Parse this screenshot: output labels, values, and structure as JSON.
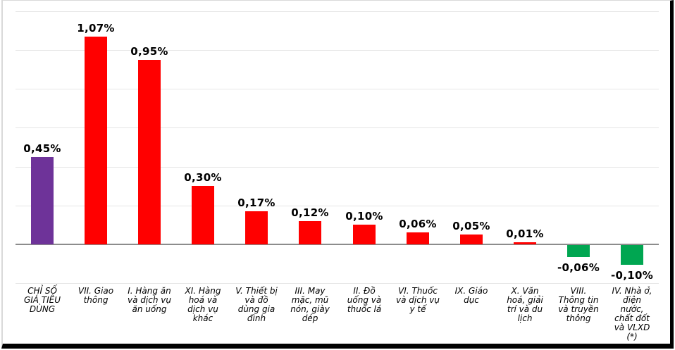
{
  "chart_data": {
    "type": "bar",
    "title": "",
    "unit": "%",
    "legend": false,
    "grid": true,
    "ylim": [
      -0.2,
      1.2
    ],
    "grid_step": 0.2,
    "categories": [
      "CHỈ SỐ GIÁ TIÊU DÙNG",
      "VII. Giao thông",
      "I. Hàng ăn và dịch vụ ăn uống",
      "XI. Hàng hoá và dịch vụ khác",
      "V. Thiết bị và đồ dùng gia đình",
      "III. May mặc, mũ nón, giày dép",
      "II. Đồ uống và thuốc lá",
      "VI. Thuốc và dịch vụ y tế",
      "IX. Giáo dục",
      "X. Văn hoá, giải trí và du lịch",
      "VIII. Thông tin và truyền thông",
      "IV. Nhà ở, điện nước, chất đốt và VLXD (*)"
    ],
    "categories_wrapped": [
      "CHỈ SỐ\nGIÁ TIÊU\nDÙNG",
      "VII. Giao\nthông",
      "I. Hàng ăn\nvà dịch vụ\năn uống",
      "XI. Hàng\nhoá và\ndịch vụ\nkhác",
      "V. Thiết bị\nvà đồ\ndùng gia\nđình",
      "III. May\nmặc, mũ\nnón, giày\ndép",
      "II. Đồ\nuống và\nthuốc lá",
      "VI. Thuốc\nvà dịch vụ\ny tế",
      "IX. Giáo\ndục",
      "X. Văn\nhoá, giải\ntrí và du\nlịch",
      "VIII.\nThông tin\nvà truyền\nthông",
      "IV. Nhà ở,\nđiện\nnước,\nchất đốt\nvà VLXD\n(*)"
    ],
    "values": [
      0.45,
      1.07,
      0.95,
      0.3,
      0.17,
      0.12,
      0.1,
      0.06,
      0.05,
      0.01,
      -0.06,
      -0.1
    ],
    "value_labels": [
      "0,45%",
      "1,07%",
      "0,95%",
      "0,30%",
      "0,17%",
      "0,12%",
      "0,10%",
      "0,06%",
      "0,05%",
      "0,01%",
      "-0,06%",
      "-0,10%"
    ],
    "bar_colors": [
      "#6E3399",
      "#FF0000",
      "#FF0000",
      "#FF0000",
      "#FF0000",
      "#FF0000",
      "#FF0000",
      "#FF0000",
      "#FF0000",
      "#FF0000",
      "#00A651",
      "#00A651"
    ],
    "colors": {
      "cpi_total": "#6E3399",
      "increase": "#FF0000",
      "decrease": "#00A651",
      "gridline": "#E6E6E6",
      "axis": "#8C8C8C",
      "background": "#FFFFFF",
      "frame_border": "#000000",
      "text": "#000000"
    }
  }
}
